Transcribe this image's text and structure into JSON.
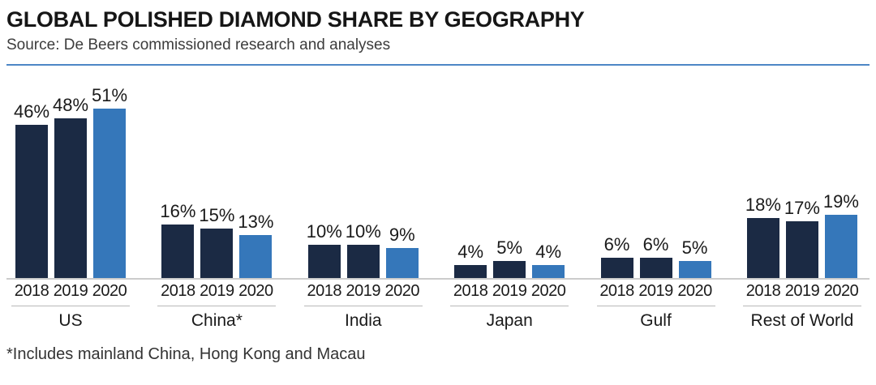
{
  "header": {
    "title": "GLOBAL POLISHED DIAMOND SHARE BY GEOGRAPHY",
    "source": "Source: De Beers commissioned research and analyses"
  },
  "footnote": "*Includes mainland China, Hong Kong and Macau",
  "colors": {
    "bar_2018": "#1b2a44",
    "bar_2019": "#1b2a44",
    "bar_2020": "#3577ba",
    "divider_rule": "#4e87c6",
    "baseline": "#cccccc",
    "text": "#1a1a1a"
  },
  "chart_data": {
    "type": "bar",
    "title": "GLOBAL POLISHED DIAMOND SHARE BY GEOGRAPHY",
    "subtitle": "Source: De Beers commissioned research and analyses",
    "unit": "%",
    "grid": false,
    "legend": "none",
    "value_labels": true,
    "categories": [
      "US",
      "China*",
      "India",
      "Japan",
      "Gulf",
      "Rest of World"
    ],
    "series": [
      {
        "name": "2018",
        "color": "#1b2a44",
        "values": [
          46,
          16,
          10,
          4,
          6,
          18
        ]
      },
      {
        "name": "2019",
        "color": "#1b2a44",
        "values": [
          48,
          15,
          10,
          5,
          6,
          17
        ]
      },
      {
        "name": "2020",
        "color": "#3577ba",
        "values": [
          51,
          13,
          9,
          4,
          5,
          19
        ]
      }
    ],
    "footnote": "*Includes mainland China, Hong Kong and Macau"
  }
}
